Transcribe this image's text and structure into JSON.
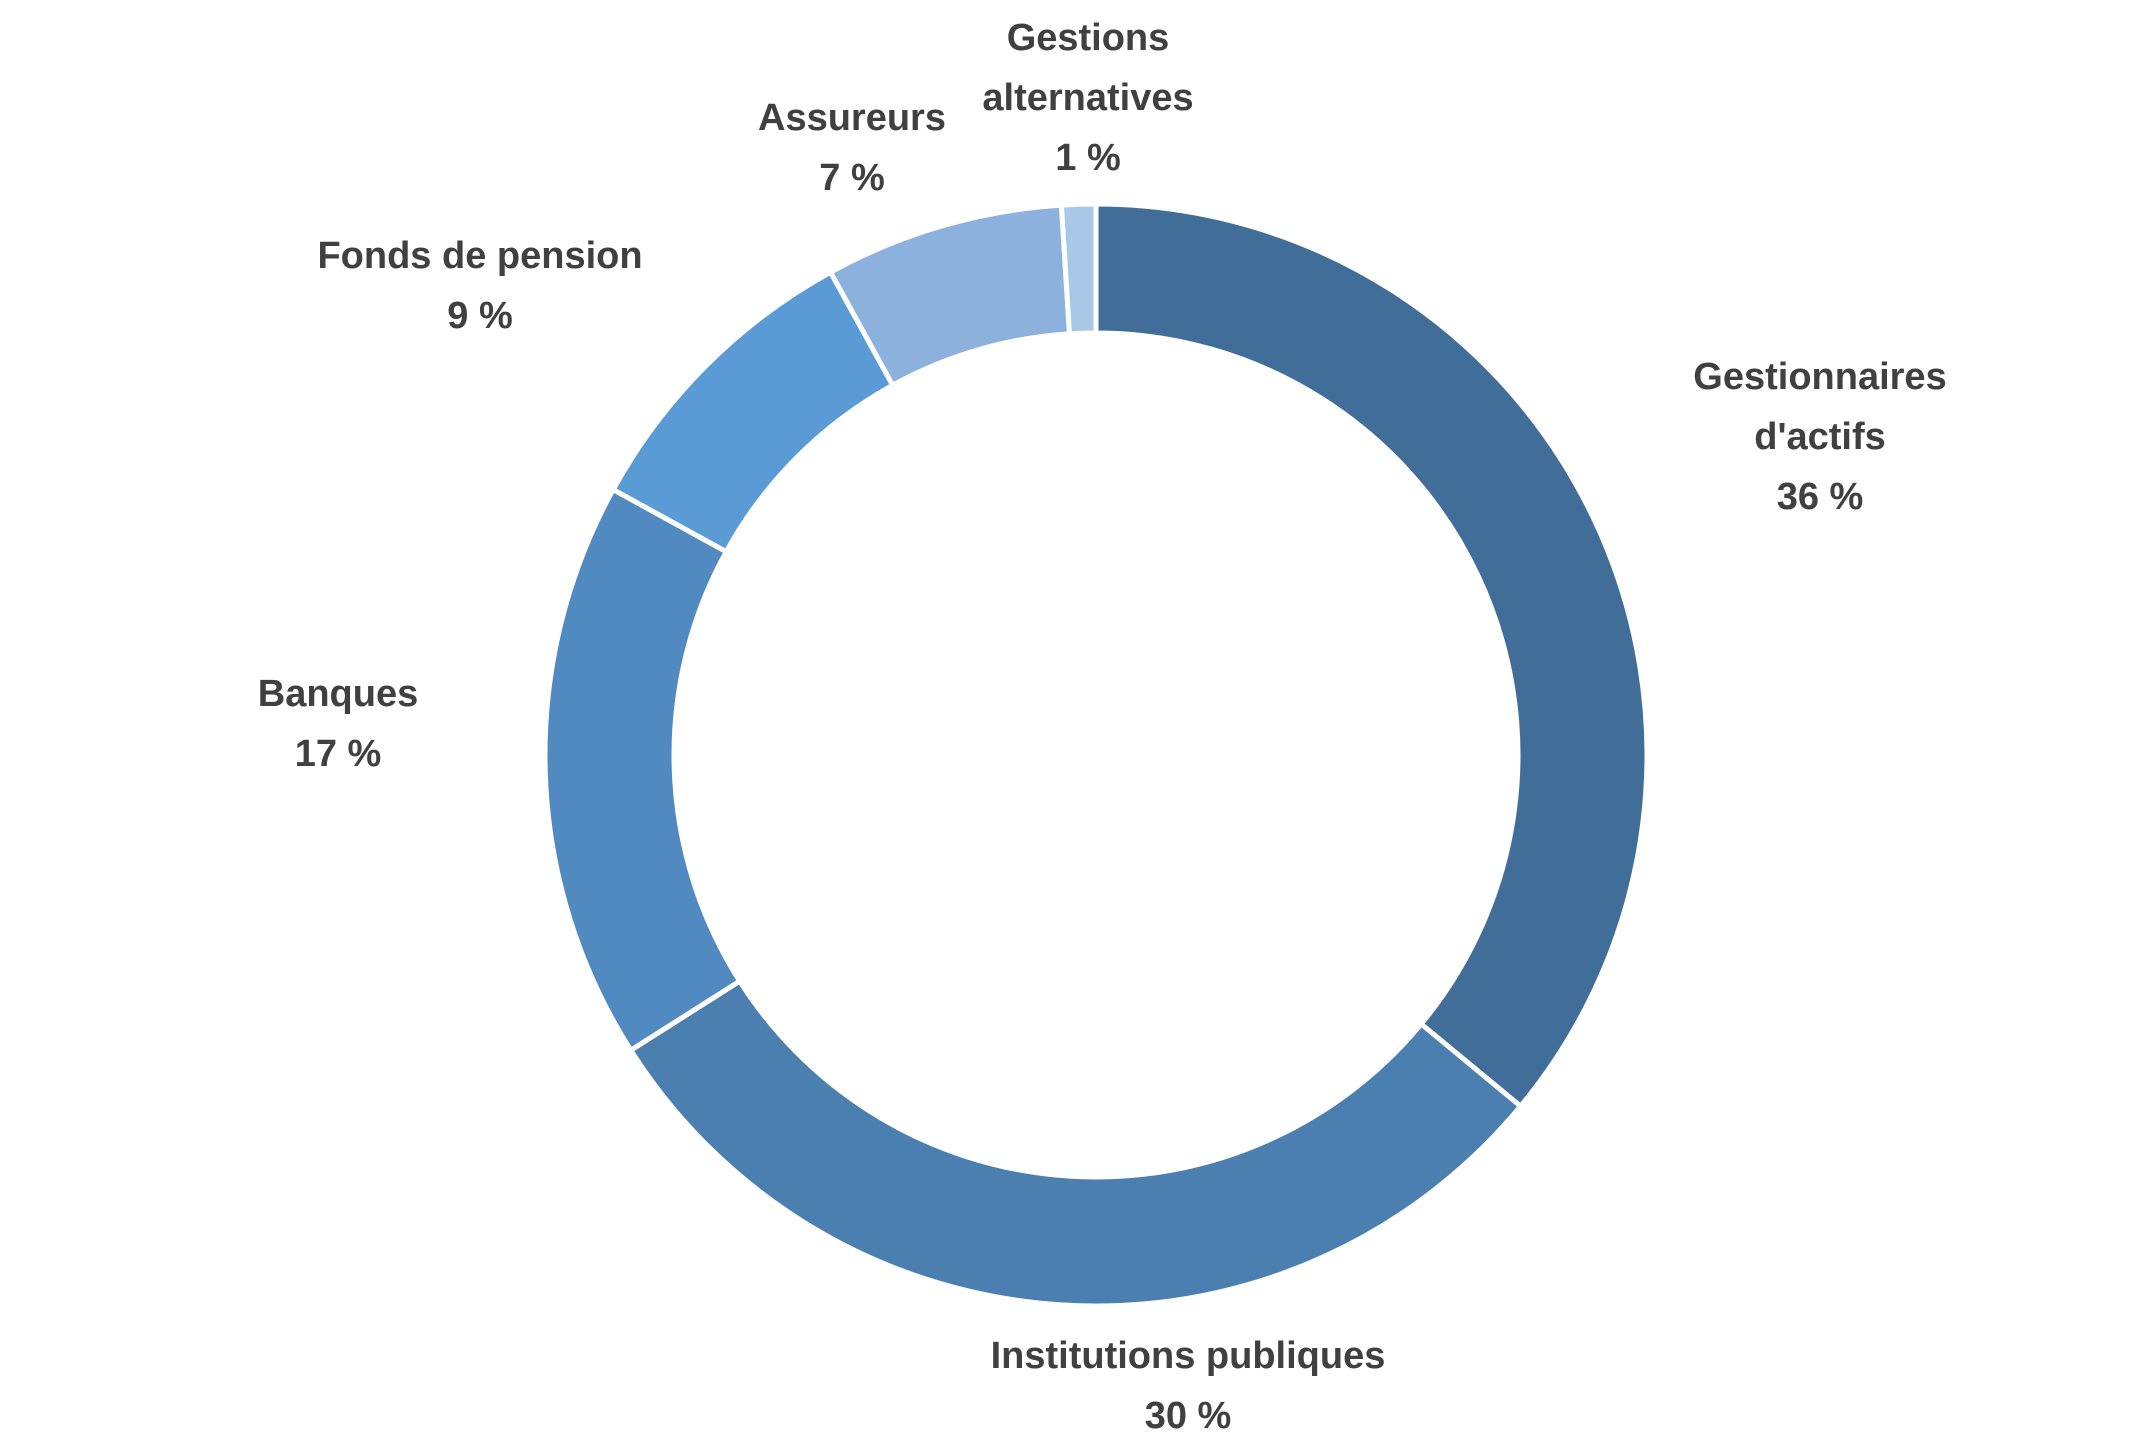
{
  "chart_data": {
    "type": "donut",
    "categories": [
      "Gestionnaires d'actifs",
      "Institutions publiques",
      "Banques",
      "Fonds de pension",
      "Assureurs",
      "Gestions alternatives"
    ],
    "values": [
      36,
      30,
      17,
      9,
      7,
      1
    ],
    "value_labels": [
      "36 %",
      "30 %",
      "17 %",
      "9 %",
      "7 %",
      "1 %"
    ],
    "colors": [
      "#416e98",
      "#4a7fb0",
      "#5189c1",
      "#5b9bd5",
      "#8db1dd",
      "#a9c8e8"
    ]
  }
}
